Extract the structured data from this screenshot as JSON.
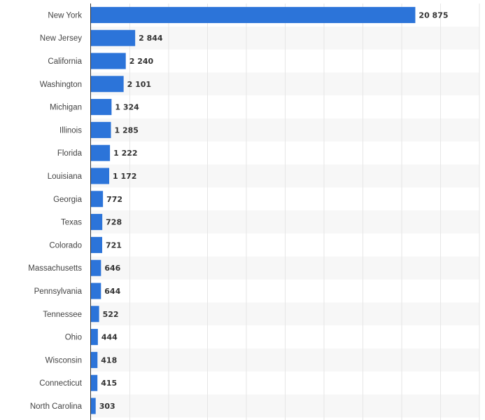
{
  "chart_data": {
    "type": "bar",
    "orientation": "horizontal",
    "categories": [
      "New York",
      "New Jersey",
      "California",
      "Washington",
      "Michigan",
      "Illinois",
      "Florida",
      "Louisiana",
      "Georgia",
      "Texas",
      "Colorado",
      "Massachusetts",
      "Pennsylvania",
      "Tennessee",
      "Ohio",
      "Wisconsin",
      "Connecticut",
      "North Carolina"
    ],
    "values": [
      20875,
      2844,
      2240,
      2101,
      1324,
      1285,
      1222,
      1172,
      772,
      728,
      721,
      646,
      644,
      522,
      444,
      418,
      415,
      303
    ],
    "value_labels": [
      "20 875",
      "2 844",
      "2 240",
      "2 101",
      "1 324",
      "1 285",
      "1 222",
      "1 172",
      "772",
      "728",
      "721",
      "646",
      "644",
      "522",
      "444",
      "418",
      "415",
      "303"
    ],
    "xlim": [
      0,
      25000
    ],
    "grid": true,
    "colors": {
      "bar": "#2c74d9",
      "band": "#f7f7f7",
      "grid": "#e6e6e6",
      "axis": "#333333"
    }
  }
}
